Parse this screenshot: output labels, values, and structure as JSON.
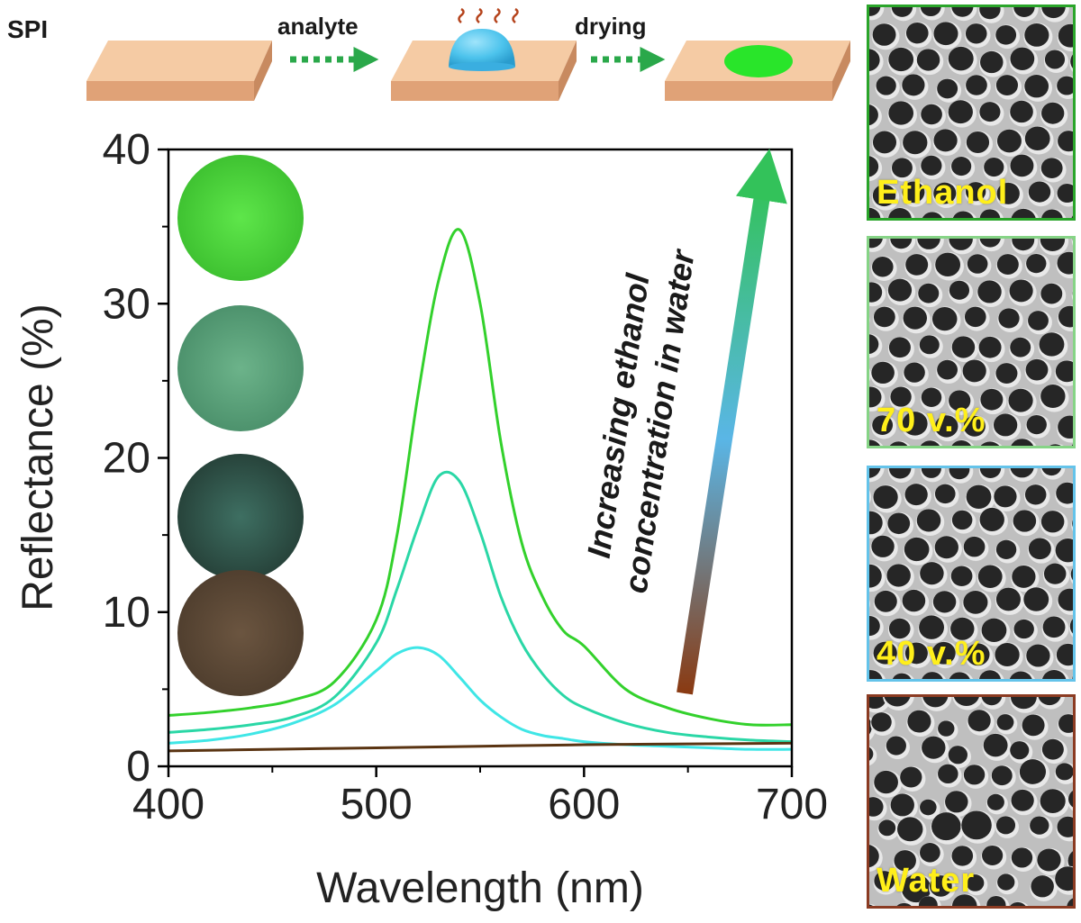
{
  "scheme": {
    "title": "SPI",
    "step1_label": "analyte",
    "step2_label": "drying",
    "substrate_color": "#f2c49a",
    "droplet_color": "#4cc3ec",
    "dried_spot_color": "#29e52a",
    "arrow_color": "#2aa84a",
    "vapor_color": "#b5441d"
  },
  "chart_data": {
    "type": "line",
    "title": "",
    "xlabel": "Wavelength (nm)",
    "ylabel": "Reflectance (%)",
    "xlim": [
      400,
      700
    ],
    "ylim": [
      0,
      40
    ],
    "xticks": [
      400,
      500,
      600,
      700
    ],
    "yticks": [
      0,
      10,
      20,
      30,
      40
    ],
    "series": [
      {
        "name": "Ethanol",
        "color": "#33d12c",
        "x": [
          400,
          420,
          440,
          460,
          480,
          500,
          510,
          520,
          530,
          540,
          550,
          560,
          570,
          580,
          590,
          600,
          620,
          640,
          660,
          680,
          700
        ],
        "y": [
          3.3,
          3.5,
          3.8,
          4.3,
          5.5,
          9.5,
          15.0,
          24.0,
          31.5,
          34.8,
          30.0,
          21.0,
          14.5,
          11.0,
          8.8,
          7.8,
          5.0,
          3.8,
          3.1,
          2.7,
          2.7
        ]
      },
      {
        "name": "70 v.%",
        "color": "#2ad7a6",
        "x": [
          400,
          420,
          440,
          460,
          480,
          500,
          510,
          520,
          530,
          540,
          550,
          560,
          570,
          580,
          590,
          600,
          620,
          640,
          660,
          680,
          700
        ],
        "y": [
          2.2,
          2.4,
          2.7,
          3.2,
          4.5,
          8.0,
          11.5,
          15.5,
          18.8,
          18.5,
          15.2,
          11.0,
          8.0,
          6.0,
          4.6,
          3.8,
          2.8,
          2.2,
          1.9,
          1.7,
          1.6
        ]
      },
      {
        "name": "40 v.%",
        "color": "#3fe6e6",
        "x": [
          400,
          420,
          440,
          460,
          480,
          500,
          510,
          520,
          530,
          540,
          550,
          560,
          570,
          580,
          590,
          600,
          620,
          640,
          660,
          680,
          700
        ],
        "y": [
          1.5,
          1.7,
          2.1,
          2.8,
          4.0,
          6.2,
          7.3,
          7.7,
          7.2,
          5.8,
          4.3,
          3.2,
          2.4,
          2.0,
          1.8,
          1.6,
          1.4,
          1.3,
          1.2,
          1.1,
          1.1
        ]
      },
      {
        "name": "Water",
        "color": "#5a3412",
        "x": [
          400,
          450,
          500,
          550,
          600,
          650,
          700
        ],
        "y": [
          1.0,
          1.1,
          1.2,
          1.3,
          1.4,
          1.45,
          1.5
        ]
      }
    ],
    "annotation": {
      "line1": "Increasing ethanol",
      "line2": "concentration in water",
      "arrow_from_color": "#8a3a12",
      "arrow_mid_color": "#5ab6e6",
      "arrow_to_color": "#33c25a"
    },
    "photo_colors": [
      "#4fd83a",
      "#5aa57a",
      "#2f5a4e",
      "#5e4a36"
    ]
  },
  "sem_panels": [
    {
      "label": "Ethanol",
      "border_color": "#2aa52a"
    },
    {
      "label": "70 v.%",
      "border_color": "#86d486"
    },
    {
      "label": "40 v.%",
      "border_color": "#64c3ea"
    },
    {
      "label": "Water",
      "border_color": "#8b3b22"
    }
  ]
}
